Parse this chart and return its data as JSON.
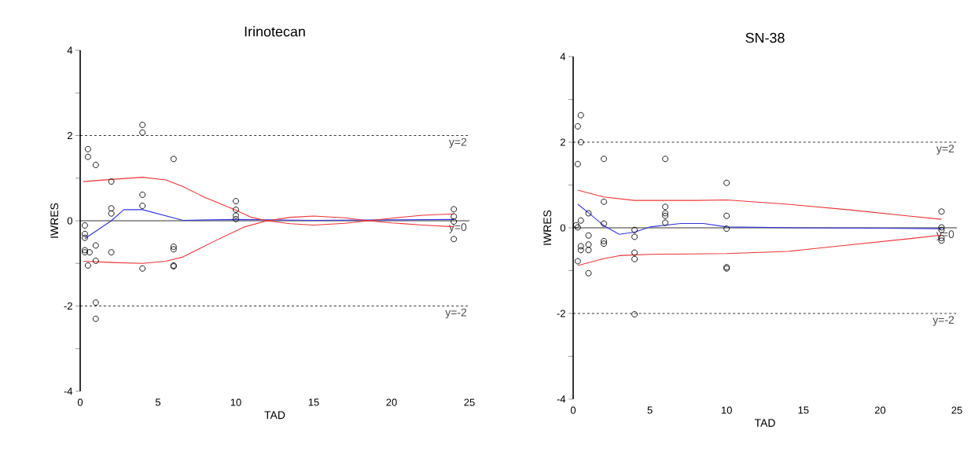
{
  "chart_data": [
    {
      "type": "scatter",
      "title": "Irinotecan",
      "xlabel": "TAD",
      "ylabel": "IWRES",
      "marker": "circle",
      "xlim": [
        0,
        25
      ],
      "ylim": [
        -4,
        4
      ],
      "xticks": [
        0,
        5,
        10,
        15,
        20,
        25
      ],
      "yticks": [
        -4,
        {
          "value": -3,
          "label": null
        },
        -2,
        {
          "value": -1,
          "label": null
        },
        0,
        {
          "value": 1,
          "label": null
        },
        2,
        {
          "value": 3,
          "label": null
        },
        4
      ],
      "series": [
        {
          "type": "scatter",
          "color": "#000000",
          "x": [
            0.5,
            0.5,
            1,
            2,
            2,
            2,
            4,
            4,
            4,
            4,
            6,
            10,
            10,
            10,
            10,
            24,
            24,
            24,
            24,
            0.3,
            0.3,
            0.3,
            0.3,
            0.3,
            0.6,
            0.5,
            1,
            1,
            2,
            4,
            6,
            6,
            6,
            6,
            1,
            1
          ],
          "values": [
            1.68,
            1.5,
            1.31,
            0.92,
            0.29,
            0.17,
            2.25,
            2.07,
            0.61,
            0.35,
            1.45,
            0.46,
            0.26,
            0.12,
            0.04,
            0.27,
            0.1,
            -0.02,
            -0.43,
            -0.11,
            -0.31,
            -0.4,
            -0.69,
            -0.74,
            -0.74,
            -1.05,
            -0.58,
            -0.94,
            -0.74,
            -1.12,
            -0.61,
            -0.67,
            -1.05,
            -1.07,
            -1.92,
            -2.3
          ]
        },
        {
          "type": "line",
          "marker": "none",
          "color": "#3333dd",
          "x": [
            0.3,
            2,
            2.8,
            4,
            6.6,
            10,
            15,
            20,
            24
          ],
          "values": [
            -0.42,
            0,
            0.26,
            0.26,
            0.01,
            0.03,
            0.01,
            0.02,
            0.03
          ]
        },
        {
          "type": "line",
          "marker": "none",
          "color": "#ee3333",
          "x": [
            0.2,
            2,
            4,
            5.5,
            6.6,
            8,
            10,
            11,
            12,
            13.5,
            15,
            17,
            18.5,
            20,
            22,
            24
          ],
          "values": [
            0.92,
            0.97,
            1.02,
            0.96,
            0.8,
            0.55,
            0.25,
            0.08,
            0,
            0.08,
            0.11,
            0.07,
            0,
            -0.05,
            -0.1,
            -0.14
          ]
        },
        {
          "type": "line",
          "marker": "none",
          "color": "#ee3333",
          "x": [
            0.2,
            2,
            4,
            5.5,
            6.6,
            8.5,
            10.5,
            12,
            13.5,
            15,
            17,
            18.5,
            20,
            22,
            24
          ],
          "values": [
            -0.95,
            -0.98,
            -1.0,
            -0.95,
            -0.85,
            -0.5,
            -0.15,
            0,
            -0.07,
            -0.1,
            -0.06,
            0,
            0.06,
            0.13,
            0.16
          ]
        }
      ],
      "ref_lines": [
        {
          "axis": "y",
          "value": 2,
          "label": "y=2",
          "line_style": "dashed",
          "color": "#000000"
        },
        {
          "axis": "y",
          "value": 0,
          "label": "y=0",
          "line_style": "solid",
          "color": "#000000"
        },
        {
          "axis": "y",
          "value": -2,
          "label": "y=-2",
          "line_style": "dashed",
          "color": "#000000"
        }
      ]
    },
    {
      "type": "scatter",
      "title": "SN-38",
      "xlabel": "TAD",
      "ylabel": "IWRES",
      "marker": "circle",
      "xlim": [
        0,
        25
      ],
      "ylim": [
        -4,
        4
      ],
      "xticks": [
        0,
        5,
        10,
        15,
        20,
        25
      ],
      "yticks": [
        -4,
        {
          "value": -3,
          "label": null
        },
        -2,
        {
          "value": -1,
          "label": null
        },
        0,
        {
          "value": 1,
          "label": null
        },
        2,
        {
          "value": 3,
          "label": null
        },
        4
      ],
      "series": [
        {
          "type": "scatter",
          "color": "#000000",
          "x": [
            0.5,
            0.3,
            0.5,
            0.3,
            2,
            6,
            2,
            1,
            0.5,
            0.2,
            0.3,
            2,
            6,
            6,
            6,
            6,
            4,
            4,
            4,
            4,
            4,
            1,
            1,
            1,
            0.5,
            0.5,
            2,
            2,
            0.3,
            1,
            10,
            10,
            10,
            10,
            10,
            24,
            24,
            24,
            24,
            24
          ],
          "values": [
            2.63,
            2.37,
            2.0,
            1.49,
            1.61,
            1.61,
            0.61,
            0.34,
            0.17,
            0.06,
            0.01,
            0.1,
            0.49,
            0.34,
            0.28,
            0.12,
            -0.05,
            -0.21,
            -0.58,
            -0.73,
            -2.02,
            -0.18,
            -0.39,
            -0.52,
            -0.43,
            -0.52,
            -0.31,
            -0.37,
            -0.78,
            -1.06,
            1.05,
            0.28,
            -0.02,
            -0.92,
            -0.95,
            0.38,
            0.01,
            -0.05,
            -0.24,
            -0.3
          ]
        },
        {
          "type": "line",
          "marker": "none",
          "color": "#3333dd",
          "x": [
            0.3,
            1,
            2,
            3,
            4,
            5,
            7,
            8.5,
            10,
            15,
            20,
            24
          ],
          "values": [
            0.55,
            0.35,
            0.05,
            -0.15,
            -0.1,
            0.02,
            0.1,
            0.1,
            0.02,
            0.0,
            -0.01,
            -0.02
          ]
        },
        {
          "type": "line",
          "marker": "none",
          "color": "#ee3333",
          "x": [
            0.3,
            2,
            4,
            8,
            10,
            14,
            18,
            22,
            24
          ],
          "values": [
            0.88,
            0.72,
            0.64,
            0.64,
            0.65,
            0.55,
            0.42,
            0.27,
            0.2
          ]
        },
        {
          "type": "line",
          "marker": "none",
          "color": "#ee3333",
          "x": [
            0.3,
            2,
            3,
            5,
            10,
            14,
            18,
            22,
            24
          ],
          "values": [
            -0.88,
            -0.72,
            -0.65,
            -0.62,
            -0.6,
            -0.55,
            -0.4,
            -0.25,
            -0.17
          ]
        }
      ],
      "ref_lines": [
        {
          "axis": "y",
          "value": 2,
          "label": "y=2",
          "line_style": "dashed",
          "color": "#000000"
        },
        {
          "axis": "y",
          "value": 0,
          "label": "y=0",
          "line_style": "solid",
          "color": "#000000"
        },
        {
          "axis": "y",
          "value": -2,
          "label": "y=-2",
          "line_style": "dashed",
          "color": "#000000"
        }
      ]
    }
  ]
}
